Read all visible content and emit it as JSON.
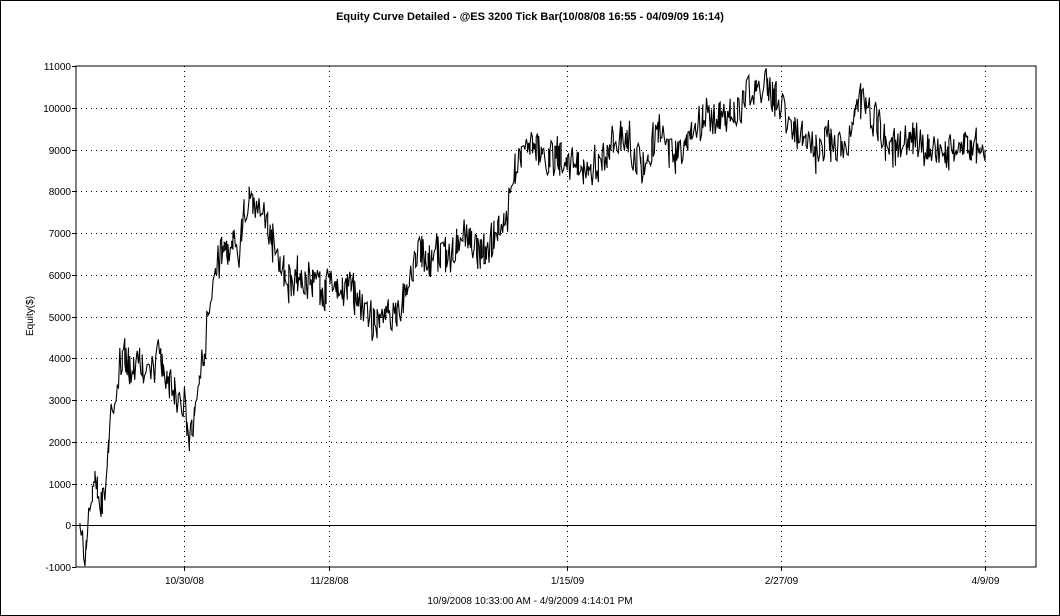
{
  "chart_data": {
    "type": "line",
    "title": "Equity Curve Detailed - @ES 3200 Tick Bar(10/08/08 16:55 - 04/09/09 16:14)",
    "xlabel": "10/9/2008 10:33:00 AM - 4/9/2009 4:14:01 PM",
    "ylabel": "Equity($)",
    "ylim": [
      -1000,
      11000
    ],
    "yticks": [
      -1000,
      0,
      1000,
      2000,
      3000,
      4000,
      5000,
      6000,
      7000,
      8000,
      9000,
      10000,
      11000
    ],
    "xlim": [
      "2008-10-09",
      "2009-04-09"
    ],
    "xticks": [
      {
        "date": "2008-10-30",
        "label": "10/30/08"
      },
      {
        "date": "2008-11-28",
        "label": "11/28/08"
      },
      {
        "date": "2009-01-15",
        "label": "1/15/09"
      },
      {
        "date": "2009-02-27",
        "label": "2/27/09"
      },
      {
        "date": "2009-04-09",
        "label": "4/9/09"
      }
    ],
    "grid": true,
    "series": [
      {
        "x": [
          "2008-10-09",
          "2008-10-10",
          "2008-10-11",
          "2008-10-12",
          "2008-10-13",
          "2008-10-14",
          "2008-10-15",
          "2008-10-16",
          "2008-10-17",
          "2008-10-18",
          "2008-10-19",
          "2008-10-20",
          "2008-10-21",
          "2008-10-22",
          "2008-10-23",
          "2008-10-24",
          "2008-10-25",
          "2008-10-26",
          "2008-10-27",
          "2008-10-28",
          "2008-10-29",
          "2008-10-30",
          "2008-10-31",
          "2008-11-01",
          "2008-11-02",
          "2008-11-03",
          "2008-11-04",
          "2008-11-05",
          "2008-11-06",
          "2008-11-07",
          "2008-11-08",
          "2008-11-09",
          "2008-11-10",
          "2008-11-11",
          "2008-11-12",
          "2008-11-13",
          "2008-11-14",
          "2008-11-15",
          "2008-11-16",
          "2008-11-17",
          "2008-11-18",
          "2008-11-19",
          "2008-11-20",
          "2008-11-21",
          "2008-11-22",
          "2008-11-23",
          "2008-11-24",
          "2008-11-25",
          "2008-11-26",
          "2008-11-27",
          "2008-11-28",
          "2008-11-30",
          "2008-12-02",
          "2008-12-04",
          "2008-12-06",
          "2008-12-08",
          "2008-12-10",
          "2008-12-12",
          "2008-12-14",
          "2008-12-16",
          "2008-12-18",
          "2008-12-20",
          "2008-12-22",
          "2008-12-24",
          "2008-12-26",
          "2008-12-28",
          "2008-12-30",
          "2009-01-01",
          "2009-01-03",
          "2009-01-05",
          "2009-01-07",
          "2009-01-09",
          "2009-01-11",
          "2009-01-13",
          "2009-01-15",
          "2009-01-17",
          "2009-01-19",
          "2009-01-21",
          "2009-01-23",
          "2009-01-25",
          "2009-01-27",
          "2009-01-29",
          "2009-01-31",
          "2009-02-02",
          "2009-02-04",
          "2009-02-06",
          "2009-02-08",
          "2009-02-10",
          "2009-02-12",
          "2009-02-14",
          "2009-02-16",
          "2009-02-18",
          "2009-02-20",
          "2009-02-22",
          "2009-02-24",
          "2009-02-26",
          "2009-02-28",
          "2009-03-02",
          "2009-03-04",
          "2009-03-06",
          "2009-03-08",
          "2009-03-10",
          "2009-03-12",
          "2009-03-14",
          "2009-03-16",
          "2009-03-18",
          "2009-03-20",
          "2009-03-22",
          "2009-03-24",
          "2009-03-26",
          "2009-03-28",
          "2009-03-30",
          "2009-04-01",
          "2009-04-03",
          "2009-04-05",
          "2009-04-07",
          "2009-04-09"
        ],
        "values": [
          0,
          -800,
          400,
          1200,
          500,
          800,
          2200,
          3000,
          3900,
          4100,
          3800,
          3900,
          4100,
          3700,
          3400,
          3800,
          4200,
          3600,
          3400,
          3300,
          3000,
          2800,
          1900,
          2700,
          3500,
          4000,
          5400,
          6000,
          6300,
          6700,
          6500,
          7000,
          6400,
          7600,
          8000,
          7500,
          7600,
          7400,
          7100,
          6800,
          6300,
          6000,
          5900,
          5700,
          6000,
          5900,
          5800,
          5900,
          5600,
          5500,
          5900,
          5700,
          5800,
          5400,
          5000,
          4900,
          5200,
          5000,
          5700,
          6500,
          6400,
          6600,
          6300,
          6800,
          6900,
          6600,
          6500,
          7100,
          7400,
          8800,
          9000,
          9100,
          8800,
          8900,
          8700,
          8600,
          8500,
          8600,
          8900,
          9200,
          9300,
          8800,
          8700,
          9400,
          9000,
          8900,
          9200,
          9600,
          9800,
          9700,
          9800,
          10000,
          10300,
          10500,
          10600,
          10200,
          9900,
          9500,
          9200,
          9000,
          9300,
          9100,
          8900,
          10000,
          10100,
          9700,
          9100,
          9000,
          9100,
          9200,
          9000,
          8950,
          9000,
          8900,
          9100,
          9000,
          8900
        ]
      }
    ]
  }
}
